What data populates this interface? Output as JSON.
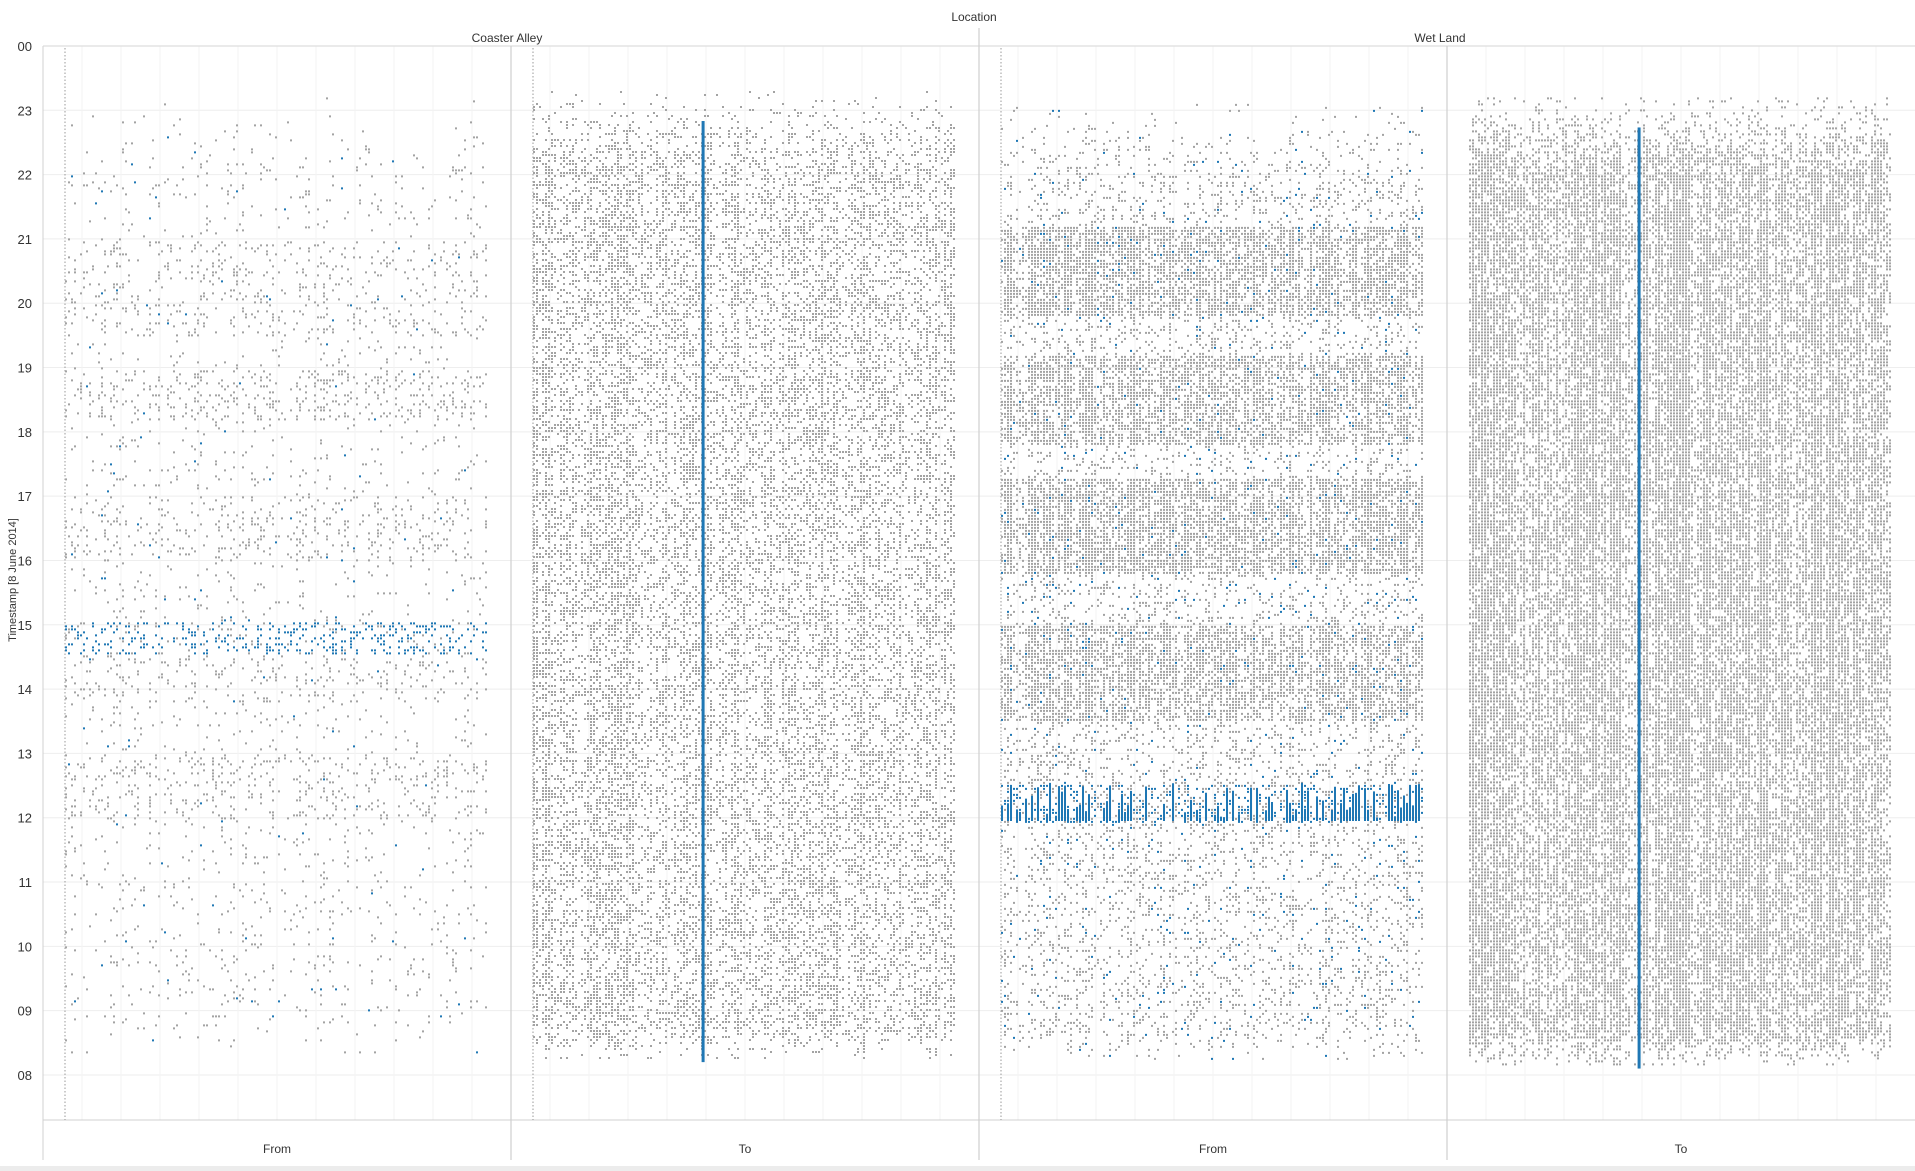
{
  "chart_data": {
    "type": "scatter",
    "title": "Location",
    "ylabel": "Timestamp [8 June 2014]",
    "y_ticks": [
      "00",
      "23",
      "22",
      "21",
      "20",
      "19",
      "18",
      "17",
      "16",
      "15",
      "14",
      "13",
      "12",
      "11",
      "10",
      "09",
      "08"
    ],
    "ylim": [
      7.3,
      24
    ],
    "y_reversed": true,
    "x_categories": [
      "From",
      "To"
    ],
    "grid": true,
    "colors": {
      "gray": "#a3a3a3",
      "blue": "#1f77b4"
    },
    "panels": [
      {
        "location": "Coaster Alley",
        "direction": "From",
        "time_range": [
          8.3,
          23.2
        ],
        "gray_density": 0.5,
        "blue_density": 0.06,
        "gray_bands": [
          [
            18.2,
            19.0,
            2.2
          ],
          [
            16.0,
            17.0,
            1.7
          ],
          [
            12.0,
            13.0,
            2.0
          ],
          [
            19.5,
            21.0,
            1.3
          ],
          [
            13.8,
            14.5,
            1.4
          ]
        ],
        "blue_bands": [
          [
            14.55,
            15.05,
            14
          ]
        ],
        "columns": []
      },
      {
        "location": "Coaster Alley",
        "direction": "To",
        "time_range": [
          8.2,
          23.3
        ],
        "gray_density": 4.0,
        "blue_density": 0,
        "gray_bands": [],
        "blue_bands": [],
        "columns": [
          0.4
        ]
      },
      {
        "location": "Wet Land",
        "direction": "From",
        "time_range": [
          8.2,
          23.1
        ],
        "gray_density": 1.8,
        "blue_density": 0.35,
        "gray_bands": [
          [
            19.8,
            21.2,
            2.4
          ],
          [
            17.8,
            19.2,
            2.3
          ],
          [
            15.8,
            17.3,
            2.5
          ],
          [
            13.5,
            15.0,
            2.2
          ]
        ],
        "blue_bands": [
          [
            11.95,
            12.55,
            12
          ],
          [
            14.0,
            15.6,
            1.2
          ]
        ],
        "columns": []
      },
      {
        "location": "Wet Land",
        "direction": "To",
        "time_range": [
          8.1,
          23.2
        ],
        "gray_density": 6.5,
        "blue_density": 0,
        "gray_bands": [],
        "blue_bands": [],
        "columns": [
          0.4
        ]
      }
    ]
  },
  "header": {
    "title": "Location",
    "panes": [
      "Coaster Alley",
      "Wet Land"
    ]
  }
}
